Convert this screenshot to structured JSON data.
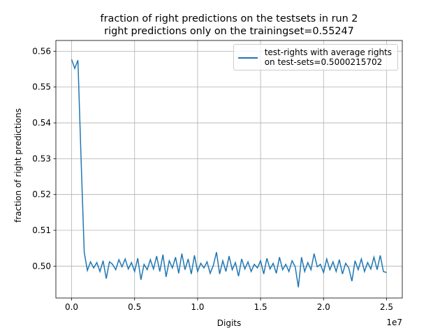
{
  "chart_data": {
    "type": "line",
    "title": "fraction of right predictions on the testsets in run 2",
    "subtitle": "right predictions only on the trainingset=0.55247",
    "xlabel": "Digits",
    "ylabel": "fraction of right predictions",
    "x_offset_label": "1e7",
    "x": [
      0,
      250000,
      500000,
      750000,
      1000000,
      1250000,
      1500000,
      1750000,
      2000000,
      2250000,
      2500000,
      2750000,
      3000000,
      3250000,
      3500000,
      3750000,
      4000000,
      4250000,
      4500000,
      4750000,
      5000000,
      5250000,
      5500000,
      5750000,
      6000000,
      6250000,
      6500000,
      6750000,
      7000000,
      7250000,
      7500000,
      7750000,
      8000000,
      8250000,
      8500000,
      8750000,
      9000000,
      9250000,
      9500000,
      9750000,
      10000000,
      10250000,
      10500000,
      10750000,
      11000000,
      11250000,
      11500000,
      11750000,
      12000000,
      12250000,
      12500000,
      12750000,
      13000000,
      13250000,
      13500000,
      13750000,
      14000000,
      14250000,
      14500000,
      14750000,
      15000000,
      15250000,
      15500000,
      15750000,
      16000000,
      16250000,
      16500000,
      16750000,
      17000000,
      17250000,
      17500000,
      17750000,
      18000000,
      18250000,
      18500000,
      18750000,
      19000000,
      19250000,
      19500000,
      19750000,
      20000000,
      20250000,
      20500000,
      20750000,
      21000000,
      21250000,
      21500000,
      21750000,
      22000000,
      22250000,
      22500000,
      22750000,
      23000000,
      23250000,
      23500000,
      23750000,
      24000000,
      24250000,
      24500000,
      24750000,
      25000000
    ],
    "series": [
      {
        "name": "test-rights with average rights\non test-sets=0.5000215702",
        "color": "#1f77b4",
        "values": [
          0.5577,
          0.5552,
          0.5575,
          0.53,
          0.5039,
          0.4988,
          0.5012,
          0.4995,
          0.501,
          0.4985,
          0.5015,
          0.4965,
          0.5012,
          0.5005,
          0.499,
          0.5018,
          0.4998,
          0.502,
          0.4992,
          0.501,
          0.4985,
          0.5022,
          0.4962,
          0.5005,
          0.499,
          0.5018,
          0.4992,
          0.5028,
          0.4985,
          0.5032,
          0.497,
          0.5015,
          0.4995,
          0.5025,
          0.498,
          0.5035,
          0.499,
          0.502,
          0.4978,
          0.503,
          0.4985,
          0.5008,
          0.4995,
          0.5012,
          0.498,
          0.5002,
          0.5039,
          0.4978,
          0.5015,
          0.4985,
          0.5028,
          0.499,
          0.501,
          0.4972,
          0.502,
          0.4992,
          0.5012,
          0.4985,
          0.5005,
          0.4995,
          0.5015,
          0.4978,
          0.5022,
          0.4992,
          0.5008,
          0.498,
          0.5025,
          0.499,
          0.5005,
          0.4985,
          0.5015,
          0.4998,
          0.4941,
          0.5025,
          0.4985,
          0.501,
          0.499,
          0.5035,
          0.4998,
          0.5005,
          0.4982,
          0.502,
          0.499,
          0.5012,
          0.4985,
          0.5018,
          0.4978,
          0.5008,
          0.4995,
          0.4958,
          0.5015,
          0.499,
          0.502,
          0.4985,
          0.501,
          0.4992,
          0.5025,
          0.499,
          0.503,
          0.4985,
          0.4982
        ]
      }
    ],
    "xlim": [
      -1250000,
      26250000
    ],
    "xticks": [
      {
        "value": 0,
        "label": "0.0"
      },
      {
        "value": 5000000,
        "label": "0.5"
      },
      {
        "value": 10000000,
        "label": "1.0"
      },
      {
        "value": 15000000,
        "label": "1.5"
      },
      {
        "value": 20000000,
        "label": "2.0"
      },
      {
        "value": 25000000,
        "label": "2.5"
      }
    ],
    "ylim": [
      0.4911,
      0.563
    ],
    "yticks": [
      {
        "value": 0.5,
        "label": "0.50"
      },
      0.51,
      0.52,
      0.53,
      0.54,
      0.55,
      0.56
    ],
    "grid": true,
    "legend": "upper right"
  }
}
